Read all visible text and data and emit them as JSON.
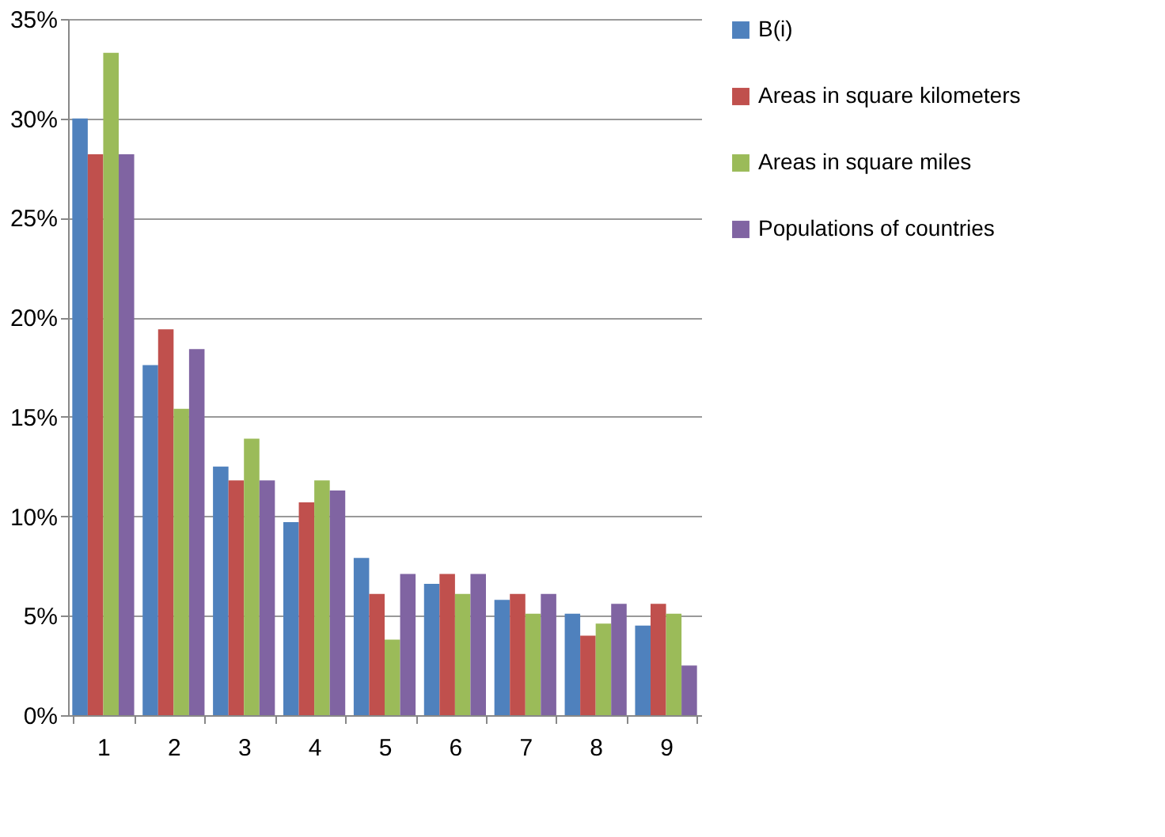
{
  "chart_data": {
    "type": "bar",
    "categories": [
      "1",
      "2",
      "3",
      "4",
      "5",
      "6",
      "7",
      "8",
      "9"
    ],
    "series": [
      {
        "name": "B(i)",
        "color": "#4f81bd",
        "values": [
          30.0,
          17.6,
          12.5,
          9.7,
          7.9,
          6.6,
          5.8,
          5.1,
          4.5
        ]
      },
      {
        "name": "Areas in square kilometers",
        "color": "#c0504d",
        "values": [
          28.2,
          19.4,
          11.8,
          10.7,
          6.1,
          7.1,
          6.1,
          4.0,
          5.6
        ]
      },
      {
        "name": "Areas in square miles",
        "color": "#9bbb59",
        "values": [
          33.3,
          15.4,
          13.9,
          11.8,
          3.8,
          6.1,
          5.1,
          4.6,
          5.1
        ]
      },
      {
        "name": "Populations of countries",
        "color": "#8064a2",
        "values": [
          28.2,
          18.4,
          11.8,
          11.3,
          7.1,
          7.1,
          6.1,
          5.6,
          2.5
        ]
      }
    ],
    "ylim": [
      0,
      35
    ],
    "yticks": [
      {
        "value": 0,
        "label": "0%"
      },
      {
        "value": 5,
        "label": "5%"
      },
      {
        "value": 10,
        "label": "10%"
      },
      {
        "value": 15,
        "label": "15%"
      },
      {
        "value": 20,
        "label": "20%"
      },
      {
        "value": 25,
        "label": "25%"
      },
      {
        "value": 30,
        "label": "30%"
      },
      {
        "value": 35,
        "label": "35%"
      }
    ],
    "grid": "y",
    "legend": "right"
  }
}
